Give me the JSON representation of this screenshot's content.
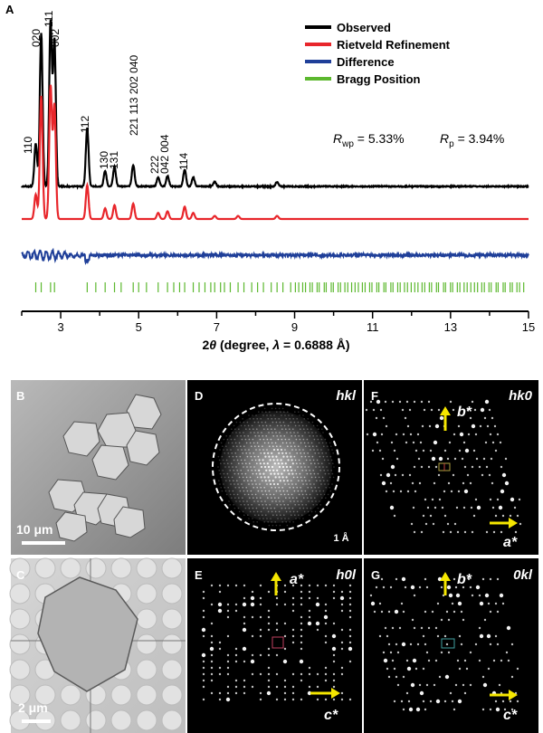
{
  "panel_letters": {
    "a": "A",
    "b": "B",
    "c": "C",
    "d": "D",
    "e": "E",
    "f": "F",
    "g": "G"
  },
  "legend": [
    {
      "label": "Observed",
      "color": "#000000"
    },
    {
      "label": "Rietveld Refinement",
      "color": "#e8262b"
    },
    {
      "label": "Difference",
      "color": "#1f3f99"
    },
    {
      "label": "Bragg Position",
      "color": "#5cb82e"
    }
  ],
  "stats": {
    "rwp_label": "R",
    "rwp_sub": "wp",
    "rwp_value": " = 5.33%",
    "rp_label": "R",
    "rp_sub": "p",
    "rp_value": " = 3.94%"
  },
  "xaxis_label": {
    "pre": "2",
    "theta": "θ",
    "mid": " (degree, ",
    "lambda": "λ",
    "post": " = 0.6888 Å)"
  },
  "chart_data": {
    "type": "line",
    "xlim": [
      2,
      15
    ],
    "xticks": [
      3,
      5,
      7,
      9,
      11,
      13,
      15
    ],
    "series": [
      {
        "name": "Observed",
        "color": "#000000",
        "peaks": [
          [
            2.36,
            0.28
          ],
          [
            2.5,
            1.0
          ],
          [
            2.74,
            1.07
          ],
          [
            2.84,
            0.95
          ],
          [
            3.68,
            0.38
          ],
          [
            4.14,
            0.1
          ],
          [
            4.38,
            0.13
          ],
          [
            4.86,
            0.14
          ],
          [
            5.5,
            0.06
          ],
          [
            5.74,
            0.07
          ],
          [
            6.18,
            0.11
          ],
          [
            6.4,
            0.06
          ],
          [
            6.95,
            0.03
          ],
          [
            8.55,
            0.03
          ]
        ]
      },
      {
        "name": "Rietveld Refinement",
        "color": "#e8262b",
        "peaks": [
          [
            2.36,
            0.16
          ],
          [
            2.5,
            0.8
          ],
          [
            2.74,
            0.86
          ],
          [
            2.84,
            0.74
          ],
          [
            3.68,
            0.22
          ],
          [
            4.14,
            0.07
          ],
          [
            4.38,
            0.09
          ],
          [
            4.86,
            0.1
          ],
          [
            5.5,
            0.04
          ],
          [
            5.74,
            0.05
          ],
          [
            6.18,
            0.08
          ],
          [
            6.4,
            0.04
          ],
          [
            6.95,
            0.02
          ],
          [
            7.55,
            0.02
          ],
          [
            8.55,
            0.02
          ]
        ]
      },
      {
        "name": "Difference",
        "color": "#1f3f99"
      }
    ],
    "peak_labels": [
      {
        "x": 2.36,
        "text": "110"
      },
      {
        "x": 2.5,
        "text": "020"
      },
      {
        "x": 2.74,
        "text": "111"
      },
      {
        "x": 2.9,
        "text": "002"
      },
      {
        "x": 3.68,
        "text": "112"
      },
      {
        "x": 4.14,
        "text": "130"
      },
      {
        "x": 4.38,
        "text": "131"
      },
      {
        "x": 4.86,
        "text": "221 113 202 040"
      },
      {
        "x": 5.5,
        "text": "222"
      },
      {
        "x": 5.74,
        "text": "042 004"
      },
      {
        "x": 6.18,
        "text": "114"
      }
    ]
  },
  "panel_b": {
    "scale": "10 μm"
  },
  "panel_c": {
    "scale": "2 μm"
  },
  "panel_d": {
    "corner": "hkl",
    "resolution": "1 Å"
  },
  "panel_f": {
    "corner": "hk0",
    "axis_v": "b*",
    "axis_h": "a*"
  },
  "panel_e": {
    "corner": "h0l",
    "axis_v": "a*",
    "axis_h": "c*"
  },
  "panel_g": {
    "corner": "0kl",
    "axis_v": "b*",
    "axis_h": "c*"
  }
}
